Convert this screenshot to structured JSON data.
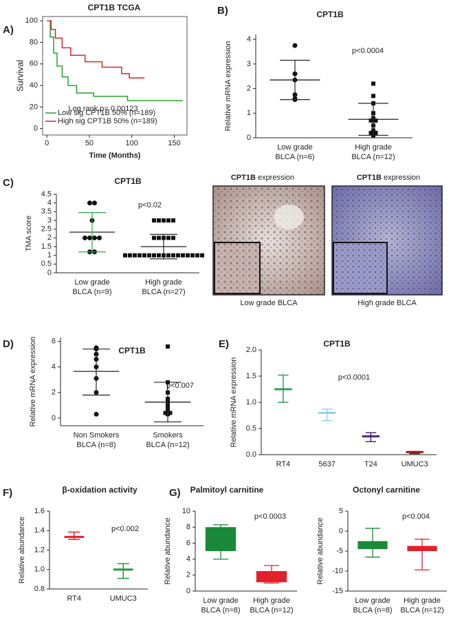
{
  "chart_data": [
    {
      "type": "line",
      "panel": "A)",
      "title": "CPT1B TCGA",
      "xlabel": "Time (Months)",
      "ylabel": "Survival",
      "annotation": "Log rank p= 0.00123",
      "legend": "lower left",
      "xlim": [
        -5,
        165
      ],
      "ylim": [
        -6,
        104
      ],
      "xticks": [
        0,
        50,
        100,
        150
      ],
      "yticks": [
        0,
        20,
        40,
        60,
        80,
        100
      ],
      "series": [
        {
          "name": "Low sig CPT1B 50% (n=189)",
          "color": "#22a32f",
          "x": [
            0,
            4,
            4,
            8,
            8,
            12,
            12,
            18,
            18,
            25,
            25,
            35,
            35,
            55,
            55,
            95,
            95,
            160
          ],
          "values": [
            100,
            100,
            85,
            85,
            70,
            70,
            58,
            58,
            48,
            48,
            40,
            40,
            33,
            33,
            30,
            30,
            26,
            26
          ]
        },
        {
          "name": "High sig CPT1B 50% (n=189)",
          "color": "#e3202a",
          "x": [
            0,
            5,
            5,
            10,
            10,
            18,
            18,
            28,
            28,
            45,
            45,
            65,
            65,
            88,
            88,
            97,
            97,
            115
          ],
          "values": [
            100,
            100,
            92,
            92,
            84,
            84,
            75,
            75,
            68,
            68,
            62,
            62,
            57,
            57,
            51,
            51,
            47,
            47
          ]
        }
      ]
    },
    {
      "type": "scatter",
      "panel": "B)",
      "title": "CPT1B",
      "ylabel": "Relative mRNA expression",
      "annotation": "p<0.0004",
      "ylim": [
        0,
        4.2
      ],
      "yticks": [
        0,
        1,
        2,
        3,
        4
      ],
      "categories": [
        [
          "Low grade",
          "BLCA (n=6)"
        ],
        [
          "High grade",
          "BLCA (n=12)"
        ]
      ],
      "groups": [
        {
          "marker": "circle",
          "bar_color": "#222",
          "values": [
            3.75,
            2.6,
            2.35,
            1.75,
            1.6,
            1.55
          ],
          "mean": 2.35,
          "sd_low": 1.55,
          "sd_high": 3.15
        },
        {
          "marker": "square",
          "bar_color": "#222",
          "values": [
            2.2,
            1.7,
            1.4,
            1.0,
            0.8,
            0.7,
            0.7,
            0.5,
            0.3,
            0.2,
            0.2,
            0.1
          ],
          "mean": 0.75,
          "sd_low": 0.1,
          "sd_high": 1.4
        }
      ]
    },
    {
      "type": "scatter",
      "panel": "C)",
      "title": "CPT1B",
      "ylabel": "TMA score",
      "annotation": "p<0.02",
      "ylim": [
        0,
        4.5
      ],
      "yticks": [
        0,
        0.5,
        1,
        1.5,
        2,
        2.5,
        3,
        3.5,
        4,
        4.5
      ],
      "categories": [
        [
          "Low grade",
          "BLCA (n=9)"
        ],
        [
          "High grade",
          "BLCA (n=27)"
        ]
      ],
      "groups": [
        {
          "marker": "circle",
          "bar_color": "#2aa84a",
          "values": [
            4,
            4,
            3,
            2,
            2,
            2,
            2,
            1.2,
            1.2
          ],
          "mean": 2.33,
          "sd_low": 1.2,
          "sd_high": 3.45
        },
        {
          "marker": "square",
          "bar_color": "#222",
          "values": [
            3,
            3,
            3,
            3,
            3,
            2,
            2,
            2,
            2,
            2,
            1,
            1,
            1,
            1,
            1,
            1,
            1,
            1,
            1,
            1,
            1,
            1,
            1,
            1,
            1,
            1,
            1
          ],
          "mean": 1.5,
          "sd_low": 0.8,
          "sd_high": 2.2
        }
      ]
    },
    {
      "type": "scatter",
      "panel": "D)",
      "title": "CPT1B",
      "ylabel": "Relative mRNA expression",
      "annotation": "p<0.007",
      "ylim": [
        -0.6,
        6.3
      ],
      "yticks": [
        0,
        2,
        4,
        6
      ],
      "categories": [
        [
          "Non Smokers",
          "BLCA (n=8)"
        ],
        [
          "Smokers",
          "BLCA (n=12)"
        ]
      ],
      "groups": [
        {
          "marker": "circle",
          "bar_color": "#222",
          "values": [
            5.5,
            5.4,
            5.0,
            4.6,
            4.0,
            3.1,
            2.0,
            0.3
          ],
          "mean": 3.65,
          "sd_low": 1.8,
          "sd_high": 5.4
        },
        {
          "marker": "square",
          "bar_color": "#222",
          "values": [
            5.6,
            2.8,
            2.0,
            1.5,
            1.3,
            1.0,
            0.8,
            0.6,
            0.5,
            0.4,
            0.4,
            0.3
          ],
          "mean": 1.25,
          "sd_low": -0.3,
          "sd_high": 2.8
        }
      ]
    },
    {
      "type": "errorbar",
      "panel": "E)",
      "title": "CPT1B",
      "ylabel": "Relative mRNA expression",
      "annotation": "p<0.0001",
      "ylim": [
        0,
        2.0
      ],
      "yticks": [
        {
          "value": 0,
          "label": "0.0"
        },
        0.5,
        {
          "value": 1,
          "label": "1.0"
        },
        1.5,
        {
          "value": 2,
          "label": "2.0"
        }
      ],
      "categories": [
        "RT4",
        "5637",
        "T24",
        "UMUC3"
      ],
      "values": [
        1.25,
        0.8,
        0.35,
        0.05
      ],
      "low": [
        1.0,
        0.65,
        0.25,
        0.02
      ],
      "high": [
        1.52,
        0.87,
        0.42,
        0.06
      ],
      "colors": [
        "#2e9e5b",
        "#8fd3e8",
        "#4b2a7a",
        "#8b1a1a"
      ]
    },
    {
      "type": "errorbar",
      "panel": "F)",
      "title": "β-oxidation activity",
      "ylabel": "Relative abundance",
      "annotation": "p<0.002",
      "ylim": [
        0.8,
        1.6
      ],
      "yticks": [
        0.8,
        {
          "value": 1,
          "label": "1.0"
        },
        1.2,
        1.4,
        1.6
      ],
      "categories": [
        "RT4",
        "UMUC3"
      ],
      "values": [
        1.335,
        1.0
      ],
      "low": [
        1.31,
        0.91
      ],
      "high": [
        1.385,
        1.06
      ],
      "colors": [
        "#e3202a",
        "#1a9e3a"
      ]
    },
    {
      "type": "box",
      "panel": "G)",
      "title": "Palmitoyl carnitine",
      "ylabel": "Relative abundance",
      "annotation": "p<0.0003",
      "ylim": [
        0,
        10
      ],
      "yticks": [
        0,
        2,
        4,
        6,
        8,
        10
      ],
      "categories": [
        [
          "Low grade",
          "BLCA (n=8)"
        ],
        [
          "High grade",
          "BLCA (n=12)"
        ]
      ],
      "min": [
        4,
        1
      ],
      "q1": [
        5,
        1.1
      ],
      "median": [
        7.5,
        1.2
      ],
      "q3": [
        8,
        2.5
      ],
      "max": [
        8.3,
        3.2
      ],
      "colors": [
        "#1a8a3a",
        "#e3202a"
      ]
    },
    {
      "type": "box",
      "title": "Octonyl carnitine",
      "ylabel": "Relative abundance",
      "annotation": "p<0.004",
      "ylim": [
        -15,
        5
      ],
      "yticks": [
        -15,
        -10,
        -5,
        0,
        5
      ],
      "categories": [
        [
          "Low grade",
          "BLCA (n=8)"
        ],
        [
          "High grade",
          "BLCA (n=12)"
        ]
      ],
      "min": [
        -6.5,
        -9.7
      ],
      "q1": [
        -4.5,
        -5
      ],
      "median": [
        -3.5,
        -4.3
      ],
      "q3": [
        -2.5,
        -3.7
      ],
      "max": [
        0.7,
        -2
      ],
      "colors": [
        "#1a8a3a",
        "#e3202a"
      ]
    }
  ],
  "images": [
    {
      "title_bold": "CPT1B",
      "title": " expression",
      "caption": "Low grade BLCA"
    },
    {
      "title_bold": "CPT1B",
      "title": " expression",
      "caption": "High grade BLCA"
    }
  ]
}
